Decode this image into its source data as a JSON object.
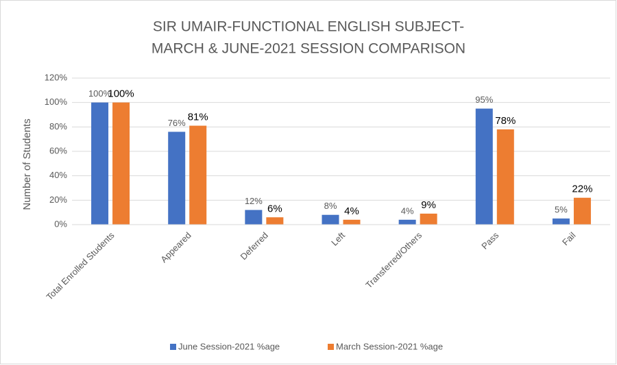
{
  "chart_data": {
    "type": "bar",
    "title": [
      "SIR UMAIR-FUNCTIONAL ENGLISH SUBJECT-",
      "MARCH & JUNE-2021 SESSION COMPARISON"
    ],
    "y_label": "Number of Students",
    "categories": [
      "Total Enrolled Students",
      "Appeared",
      "Deferred",
      "Left",
      "Transferred/Others",
      "Pass",
      "Fail"
    ],
    "series": [
      {
        "name": "June Session-2021 %age",
        "color": "#4472c4",
        "values": [
          100,
          76,
          12,
          8,
          4,
          95,
          5
        ],
        "value_labels": [
          "100%",
          "76%",
          "12%",
          "8%",
          "4%",
          "95%",
          "5%"
        ]
      },
      {
        "name": "March Session-2021 %age",
        "color": "#ed7d31",
        "values": [
          100,
          81,
          6,
          4,
          9,
          78,
          22
        ],
        "value_labels": [
          "100%",
          "81%",
          "6%",
          "4%",
          "9%",
          "78%",
          "22%"
        ]
      }
    ],
    "ylim": [
      0,
      120
    ],
    "yticks": [
      {
        "value": 0,
        "label": "0%"
      },
      {
        "value": 20,
        "label": "20%"
      },
      {
        "value": 40,
        "label": "40%"
      },
      {
        "value": 60,
        "label": "60%"
      },
      {
        "value": 80,
        "label": "80%"
      },
      {
        "value": 100,
        "label": "100%"
      },
      {
        "value": 120,
        "label": "120%"
      }
    ],
    "grid": true,
    "legend": "bottom"
  }
}
